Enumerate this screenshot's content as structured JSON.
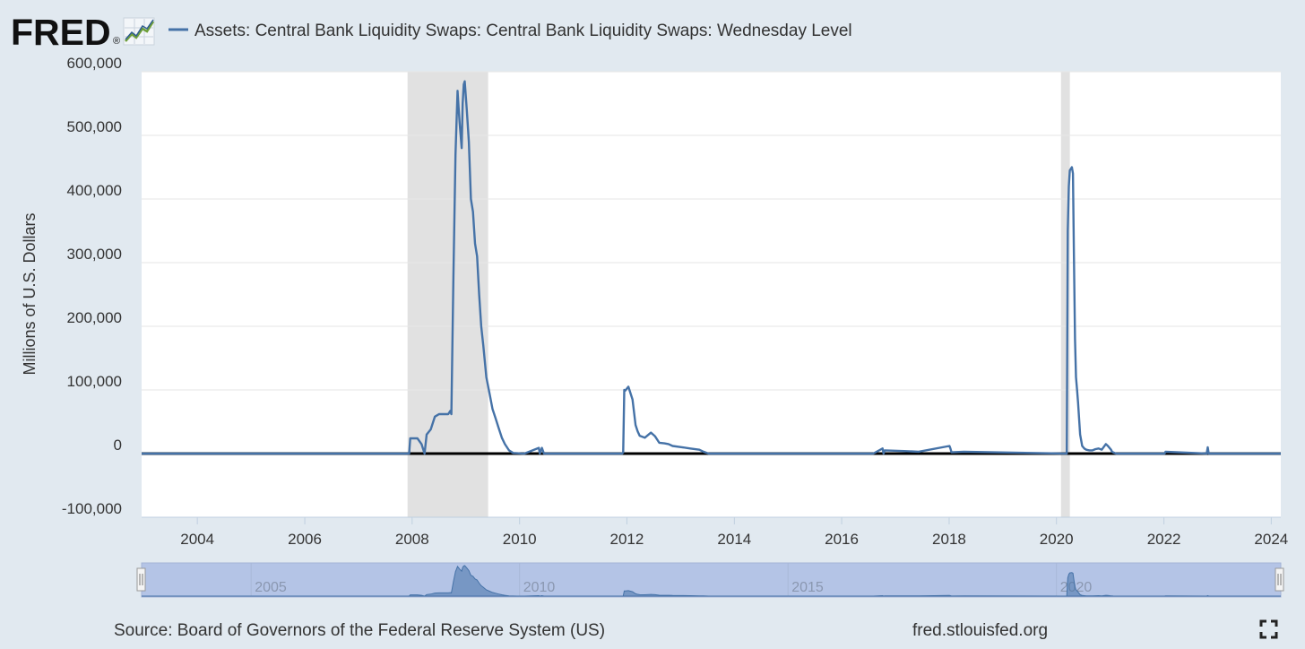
{
  "header": {
    "logo_text": "FRED",
    "logo_registered": "®",
    "legend_series_name": "Assets: Central Bank Liquidity Swaps: Central Bank Liquidity Swaps: Wednesday Level"
  },
  "footer": {
    "source": "Source: Board of Governors of the Federal Reserve System (US)",
    "site": "fred.stlouisfed.org",
    "fullscreen_icon": "fullscreen-icon"
  },
  "navigator": {
    "labels": [
      "2005",
      "2010",
      "2015",
      "2020"
    ]
  },
  "colors": {
    "background": "#e1e9f0",
    "plot": "#ffffff",
    "series": "#4572a7",
    "recession": "#e1e1e1",
    "zero_line": "#000000",
    "navigator_mask": "#b4c4e6"
  },
  "chart_data": {
    "type": "line",
    "title": "",
    "ylabel": "Millions of U.S. Dollars",
    "xlabel": "",
    "ylim": [
      -100000,
      600000
    ],
    "yticks": [
      -100000,
      0,
      100000,
      200000,
      300000,
      400000,
      500000,
      600000
    ],
    "ytick_labels": [
      "-100,000",
      "0",
      "100,000",
      "200,000",
      "300,000",
      "400,000",
      "500,000",
      "600,000"
    ],
    "xlim": [
      "2002-12-18",
      "2024-03-06"
    ],
    "xticks": [
      "2004",
      "2006",
      "2008",
      "2010",
      "2012",
      "2014",
      "2016",
      "2018",
      "2020",
      "2022",
      "2024"
    ],
    "grid": true,
    "legend": "top",
    "recessions": [
      {
        "start": "2007-12-01",
        "end": "2009-06-01"
      },
      {
        "start": "2020-02-01",
        "end": "2020-04-01"
      }
    ],
    "series": [
      {
        "name": "Assets: Central Bank Liquidity Swaps: Central Bank Liquidity Swaps: Wednesday Level",
        "x": [
          "2002-12-18",
          "2007-12-12",
          "2007-12-19",
          "2008-01-16",
          "2008-02-06",
          "2008-03-05",
          "2008-03-26",
          "2008-04-09",
          "2008-05-07",
          "2008-06-04",
          "2008-07-02",
          "2008-08-06",
          "2008-09-03",
          "2008-09-17",
          "2008-09-24",
          "2008-10-08",
          "2008-10-22",
          "2008-11-05",
          "2008-11-12",
          "2008-11-19",
          "2008-12-03",
          "2008-12-10",
          "2008-12-17",
          "2008-12-24",
          "2009-01-07",
          "2009-01-21",
          "2009-02-04",
          "2009-02-18",
          "2009-03-04",
          "2009-03-18",
          "2009-04-01",
          "2009-04-15",
          "2009-04-29",
          "2009-05-20",
          "2009-06-10",
          "2009-07-01",
          "2009-07-22",
          "2009-08-12",
          "2009-09-02",
          "2009-09-23",
          "2009-10-21",
          "2009-11-18",
          "2009-12-16",
          "2010-01-13",
          "2010-02-03",
          "2010-05-12",
          "2010-05-19",
          "2010-06-02",
          "2010-06-16",
          "2010-07-07",
          "2011-11-30",
          "2011-12-07",
          "2011-12-14",
          "2011-12-21",
          "2012-01-11",
          "2012-02-08",
          "2012-02-29",
          "2012-03-14",
          "2012-03-28",
          "2012-05-02",
          "2012-06-13",
          "2012-07-11",
          "2012-08-08",
          "2012-09-12",
          "2012-10-10",
          "2012-11-07",
          "2013-01-09",
          "2013-03-06",
          "2013-05-08",
          "2013-06-05",
          "2013-07-10",
          "2016-08-03",
          "2016-10-05",
          "2016-10-12",
          "2016-10-19",
          "2017-03-01",
          "2017-06-07",
          "2018-01-03",
          "2018-01-10",
          "2018-01-17",
          "2018-04-11",
          "2020-02-26",
          "2020-03-11",
          "2020-03-18",
          "2020-03-25",
          "2020-04-01",
          "2020-04-15",
          "2020-04-22",
          "2020-04-29",
          "2020-05-06",
          "2020-05-13",
          "2020-05-20",
          "2020-05-27",
          "2020-06-10",
          "2020-06-24",
          "2020-07-08",
          "2020-07-22",
          "2020-08-12",
          "2020-09-02",
          "2020-09-23",
          "2020-10-14",
          "2020-11-04",
          "2020-12-02",
          "2020-12-16",
          "2021-01-06",
          "2021-01-13",
          "2021-01-20",
          "2021-02-10",
          "2021-03-10",
          "2021-04-07",
          "2022-01-05",
          "2022-01-12",
          "2022-10-19",
          "2022-10-26",
          "2022-11-02",
          "2023-01-04",
          "2024-03-06"
        ],
        "values": [
          0,
          0,
          24000,
          24000,
          24000,
          15000,
          0,
          30000,
          38000,
          58000,
          62000,
          62000,
          62000,
          67000,
          62000,
          280000,
          470000,
          570000,
          545000,
          520000,
          480000,
          550000,
          580000,
          585000,
          540000,
          490000,
          400000,
          380000,
          330000,
          310000,
          250000,
          200000,
          170000,
          120000,
          95000,
          70000,
          55000,
          40000,
          25000,
          15000,
          5000,
          1000,
          500,
          200,
          0,
          9000,
          0,
          9000,
          0,
          0,
          0,
          2000,
          100000,
          99000,
          105000,
          85000,
          45000,
          35000,
          28000,
          25000,
          33000,
          27000,
          17000,
          16000,
          15000,
          12000,
          10000,
          8000,
          6000,
          3000,
          0,
          0,
          8000,
          0,
          5000,
          4000,
          3000,
          12000,
          8000,
          2000,
          3000,
          0,
          0,
          350000,
          420000,
          445000,
          450000,
          440000,
          310000,
          180000,
          120000,
          100000,
          80000,
          30000,
          12000,
          8000,
          6000,
          5000,
          5000,
          7000,
          8000,
          6000,
          15000,
          12000,
          6000,
          3000,
          2000,
          0,
          0,
          0,
          0,
          3000,
          0,
          10000,
          0,
          0,
          0
        ]
      }
    ]
  }
}
